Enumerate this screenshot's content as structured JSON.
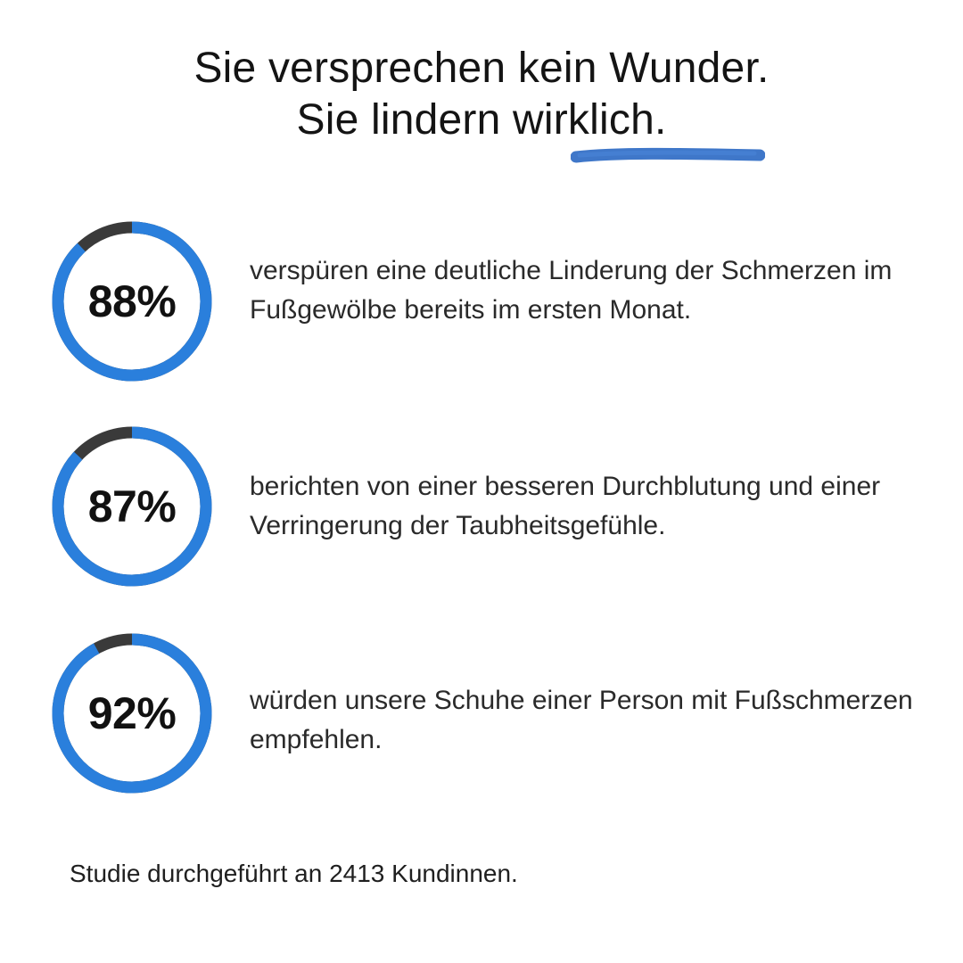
{
  "headline": {
    "line1": "Sie versprechen kein Wunder.",
    "line2": "Sie lindern wirklich."
  },
  "colors": {
    "ring_accent": "#2a7fdc",
    "ring_track": "#3a3a3a",
    "underline": "#2f6bc4"
  },
  "stats": [
    {
      "value_label": "88%",
      "percent": 88,
      "text": "verspüren eine deutliche Linderung der Schmerzen im Fußgewölbe bereits im ersten Monat."
    },
    {
      "value_label": "87%",
      "percent": 87,
      "text": "berichten von einer besseren Durchblutung und einer Verringerung der Taubheitsgefühle."
    },
    {
      "value_label": "92%",
      "percent": 92,
      "text": "würden unsere Schuhe einer Person mit Fußschmerzen empfehlen."
    }
  ],
  "footnote": "Studie durchgeführt an 2413 Kundinnen."
}
